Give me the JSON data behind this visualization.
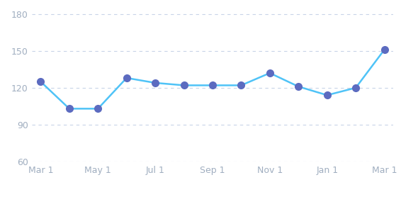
{
  "x_labels": [
    "Mar 1",
    "May 1",
    "Jul 1",
    "Sep 1",
    "Nov 1",
    "Jan 1",
    "Mar 1"
  ],
  "x_positions": [
    0,
    2,
    4,
    6,
    8,
    10,
    12
  ],
  "y_values": [
    125,
    103,
    103,
    128,
    124,
    122,
    122,
    122,
    132,
    121,
    114,
    120,
    151
  ],
  "x_data": [
    0,
    1,
    2,
    3,
    4,
    5,
    6,
    7,
    8,
    9,
    10,
    11,
    12
  ],
  "ylim": [
    60,
    185
  ],
  "yticks": [
    60,
    90,
    120,
    150,
    180
  ],
  "line_color": "#4fc3f7",
  "marker_color": "#5c6bc0",
  "marker_size": 7,
  "line_width": 1.8,
  "background_color": "#ffffff",
  "grid_color": "#c8d4e8",
  "tick_label_color": "#a0aec0",
  "tick_label_size": 9,
  "xlim_left": -0.3,
  "xlim_right": 12.3
}
